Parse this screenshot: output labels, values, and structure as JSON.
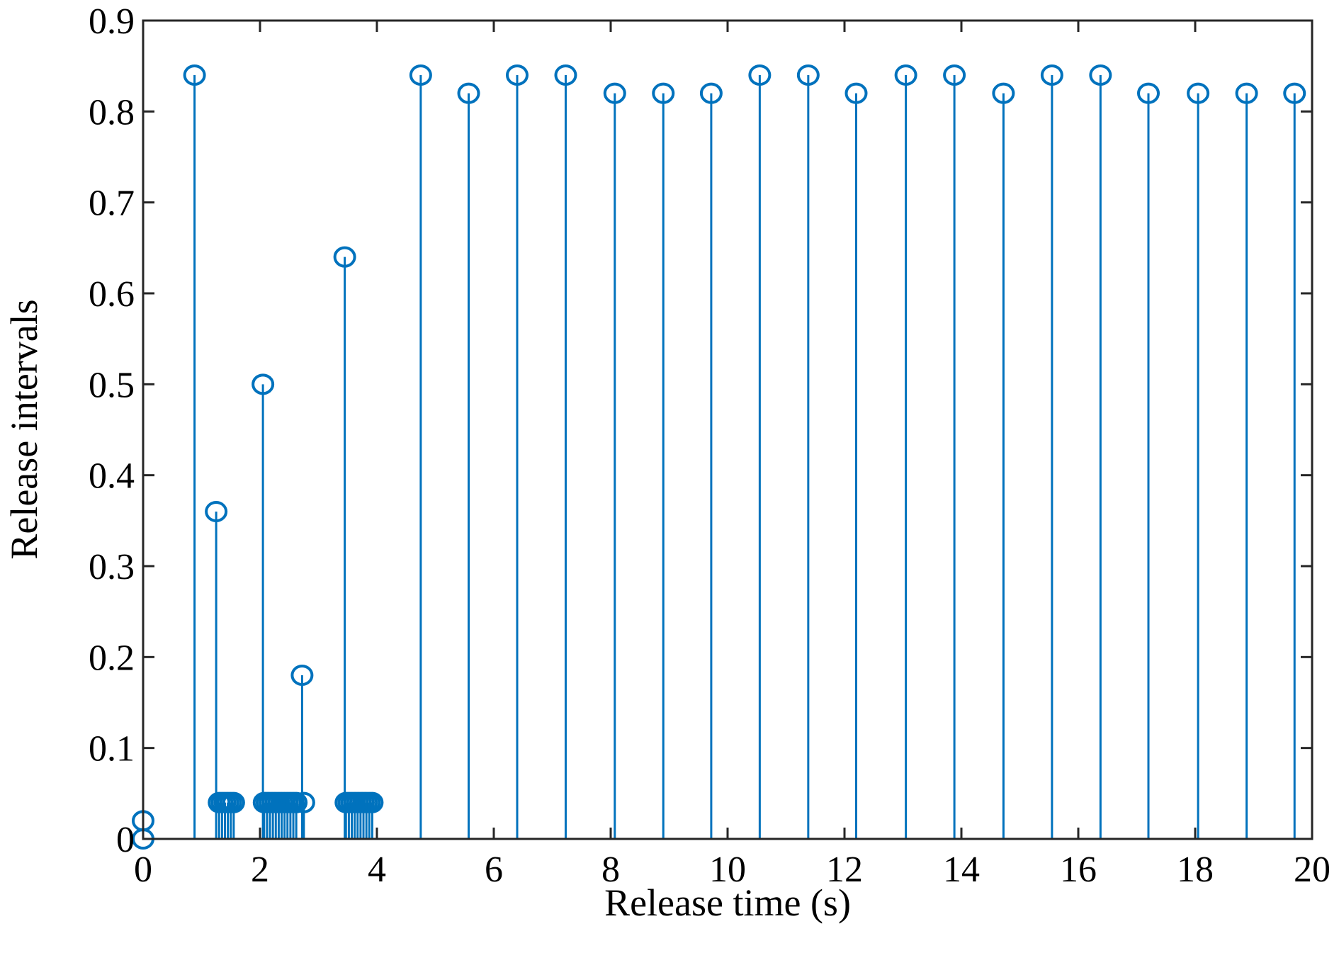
{
  "chart_data": {
    "type": "stem",
    "xlabel": "Release time (s)",
    "ylabel": "Release intervals",
    "xlim": [
      0,
      20
    ],
    "ylim": [
      0,
      0.9
    ],
    "xticks": [
      "0",
      "2",
      "4",
      "6",
      "8",
      "10",
      "12",
      "14",
      "16",
      "18",
      "20"
    ],
    "yticks": [
      "0",
      "0.1",
      "0.2",
      "0.3",
      "0.4",
      "0.5",
      "0.6",
      "0.7",
      "0.8",
      "0.9"
    ],
    "grid": false,
    "box": true,
    "color": "#0072bd",
    "series": [
      {
        "x": [
          0,
          0,
          0.88,
          1.25,
          1.3,
          1.35,
          1.4,
          1.45,
          1.5,
          1.55,
          2.05,
          2.07,
          2.12,
          2.17,
          2.22,
          2.27,
          2.32,
          2.37,
          2.42,
          2.47,
          2.52,
          2.57,
          2.62,
          2.72,
          2.75,
          3.45,
          3.47,
          3.52,
          3.57,
          3.62,
          3.67,
          3.72,
          3.77,
          3.82,
          3.87,
          3.92,
          4.75,
          5.57,
          6.4,
          7.23,
          8.07,
          8.9,
          9.72,
          10.55,
          11.38,
          12.2,
          13.05,
          13.88,
          14.72,
          15.55,
          16.38,
          17.2,
          18.05,
          18.88,
          19.7
        ],
        "y": [
          0,
          0.02,
          0.84,
          0.36,
          0.04,
          0.04,
          0.04,
          0.04,
          0.04,
          0.04,
          0.5,
          0.04,
          0.04,
          0.04,
          0.04,
          0.04,
          0.04,
          0.04,
          0.04,
          0.04,
          0.04,
          0.04,
          0.04,
          0.18,
          0.04,
          0.64,
          0.04,
          0.04,
          0.04,
          0.04,
          0.04,
          0.04,
          0.04,
          0.04,
          0.04,
          0.04,
          0.84,
          0.82,
          0.84,
          0.84,
          0.82,
          0.82,
          0.82,
          0.84,
          0.84,
          0.82,
          0.84,
          0.84,
          0.82,
          0.84,
          0.84,
          0.82,
          0.82,
          0.82,
          0.82
        ]
      }
    ]
  }
}
